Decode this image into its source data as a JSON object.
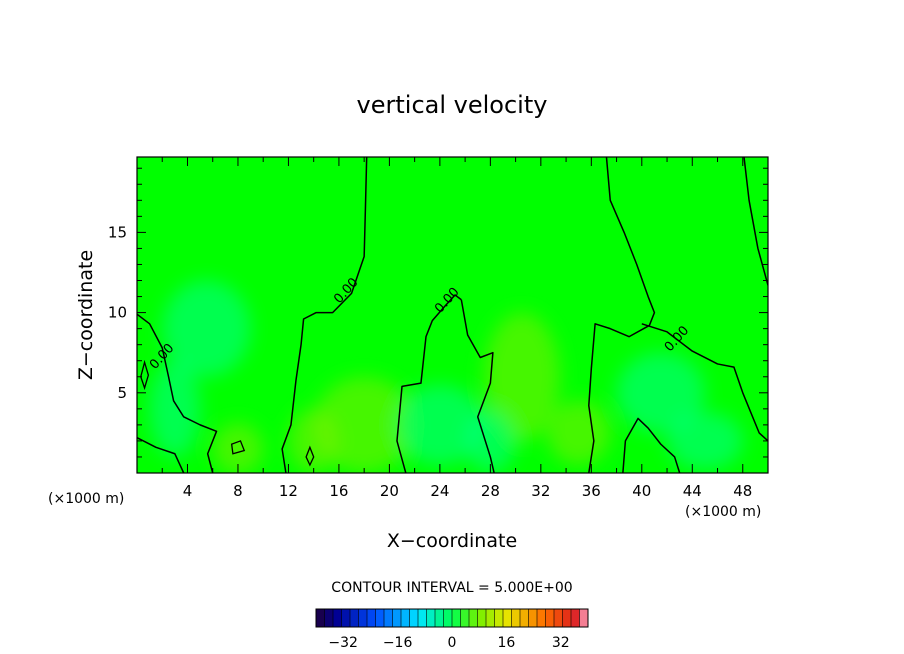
{
  "chart_data": {
    "type": "heatmap",
    "title": "vertical velocity",
    "xlabel": "X−coordinate",
    "ylabel": "Z−coordinate",
    "x_unit_left": "(×1000 m)",
    "x_unit_right": "(×1000 m)",
    "xlim": [
      0,
      50
    ],
    "ylim": [
      0,
      19.7
    ],
    "x_ticks": [
      {
        "value": 4,
        "label": "4"
      },
      {
        "value": 8,
        "label": "8"
      },
      {
        "value": 12,
        "label": "12"
      },
      {
        "value": 16,
        "label": "16"
      },
      {
        "value": 20,
        "label": "20"
      },
      {
        "value": 24,
        "label": "24"
      },
      {
        "value": 28,
        "label": "28"
      },
      {
        "value": 32,
        "label": "32"
      },
      {
        "value": 36,
        "label": "36"
      },
      {
        "value": 40,
        "label": "40"
      },
      {
        "value": 44,
        "label": "44"
      },
      {
        "value": 48,
        "label": "48"
      }
    ],
    "y_ticks": [
      {
        "value": 5,
        "label": "5"
      },
      {
        "value": 10,
        "label": "10"
      },
      {
        "value": 15,
        "label": "15"
      }
    ],
    "contour_interval_text": "CONTOUR INTERVAL = 5.000E+00",
    "contour_labels": [
      {
        "x": 2.2,
        "z": 7.1,
        "text": "0.00"
      },
      {
        "x": 16.8,
        "z": 11.2,
        "text": "0.00"
      },
      {
        "x": 24.8,
        "z": 10.6,
        "text": "0.00"
      },
      {
        "x": 43.0,
        "z": 8.2,
        "text": "0.00"
      }
    ],
    "zero_contours": [
      [
        [
          18.2,
          19.7
        ],
        [
          18.1,
          16.5
        ],
        [
          18.0,
          13.5
        ],
        [
          17.0,
          11.2
        ],
        [
          15.5,
          10.0
        ],
        [
          14.2,
          10.0
        ],
        [
          13.2,
          9.6
        ],
        [
          13.0,
          8.0
        ],
        [
          12.6,
          5.8
        ],
        [
          12.2,
          3.0
        ],
        [
          11.5,
          1.5
        ],
        [
          11.8,
          0.0
        ]
      ],
      [
        [
          0.0,
          9.9
        ],
        [
          1.0,
          9.3
        ],
        [
          2.0,
          7.8
        ],
        [
          2.5,
          6.0
        ],
        [
          2.9,
          4.5
        ],
        [
          3.7,
          3.5
        ],
        [
          5.0,
          3.0
        ],
        [
          6.3,
          2.6
        ],
        [
          5.6,
          1.2
        ],
        [
          6.0,
          0.0
        ]
      ],
      [
        [
          25.7,
          10.8
        ],
        [
          25.2,
          11.1
        ],
        [
          24.4,
          10.4
        ],
        [
          23.4,
          9.5
        ],
        [
          22.9,
          8.5
        ],
        [
          22.5,
          5.6
        ],
        [
          21.0,
          5.4
        ],
        [
          20.6,
          2.0
        ],
        [
          21.3,
          0.0
        ]
      ],
      [
        [
          25.7,
          10.8
        ],
        [
          26.2,
          8.6
        ],
        [
          27.2,
          7.2
        ],
        [
          28.2,
          7.5
        ],
        [
          28.0,
          5.6
        ],
        [
          27.0,
          3.5
        ],
        [
          28.0,
          1.0
        ],
        [
          28.3,
          0.0
        ]
      ],
      [
        [
          37.2,
          19.7
        ],
        [
          37.5,
          17.0
        ],
        [
          38.6,
          15.0
        ],
        [
          39.6,
          13.0
        ],
        [
          40.5,
          11.0
        ],
        [
          41.0,
          10.0
        ],
        [
          40.6,
          9.2
        ],
        [
          39.0,
          8.5
        ],
        [
          37.5,
          9.0
        ],
        [
          36.3,
          9.3
        ],
        [
          36.0,
          6.5
        ],
        [
          35.8,
          4.2
        ],
        [
          36.2,
          2.0
        ],
        [
          35.8,
          0.0
        ]
      ],
      [
        [
          40.0,
          9.3
        ],
        [
          42.0,
          8.8
        ],
        [
          44.0,
          7.6
        ],
        [
          46.0,
          6.8
        ],
        [
          47.3,
          6.6
        ],
        [
          48.0,
          5.0
        ],
        [
          49.3,
          2.5
        ],
        [
          50.0,
          2.0
        ]
      ],
      [
        [
          48.1,
          19.7
        ],
        [
          48.5,
          17.0
        ],
        [
          49.2,
          14.0
        ],
        [
          50.0,
          11.7
        ]
      ],
      [
        [
          0.0,
          2.2
        ],
        [
          1.5,
          1.6
        ],
        [
          3.0,
          1.2
        ],
        [
          3.7,
          0.0
        ]
      ],
      [
        [
          38.5,
          0.0
        ],
        [
          38.7,
          2.0
        ],
        [
          39.7,
          3.4
        ],
        [
          40.5,
          2.8
        ],
        [
          41.5,
          1.8
        ],
        [
          42.6,
          1.0
        ],
        [
          43.0,
          0.0
        ]
      ]
    ],
    "closed_contours": [
      [
        [
          0.3,
          6.0
        ],
        [
          0.6,
          5.3
        ],
        [
          0.9,
          6.1
        ],
        [
          0.6,
          6.9
        ]
      ],
      [
        [
          13.4,
          1.0
        ],
        [
          13.7,
          0.5
        ],
        [
          14.0,
          1.0
        ],
        [
          13.7,
          1.6
        ]
      ],
      [
        [
          7.6,
          1.2
        ],
        [
          8.5,
          1.4
        ],
        [
          8.2,
          2.0
        ],
        [
          7.5,
          1.8
        ]
      ]
    ],
    "colorbar": {
      "min": -40,
      "max": 40,
      "step": 5,
      "ticks": [
        {
          "value": -32,
          "label": "−32"
        },
        {
          "value": -16,
          "label": "−16"
        },
        {
          "value": 0,
          "label": "0"
        },
        {
          "value": 16,
          "label": "16"
        },
        {
          "value": 32,
          "label": "32"
        }
      ]
    },
    "colors": {
      "field_base": "#00ff00",
      "weak_up": "#7fef00",
      "weak_down": "#00ff90"
    }
  }
}
